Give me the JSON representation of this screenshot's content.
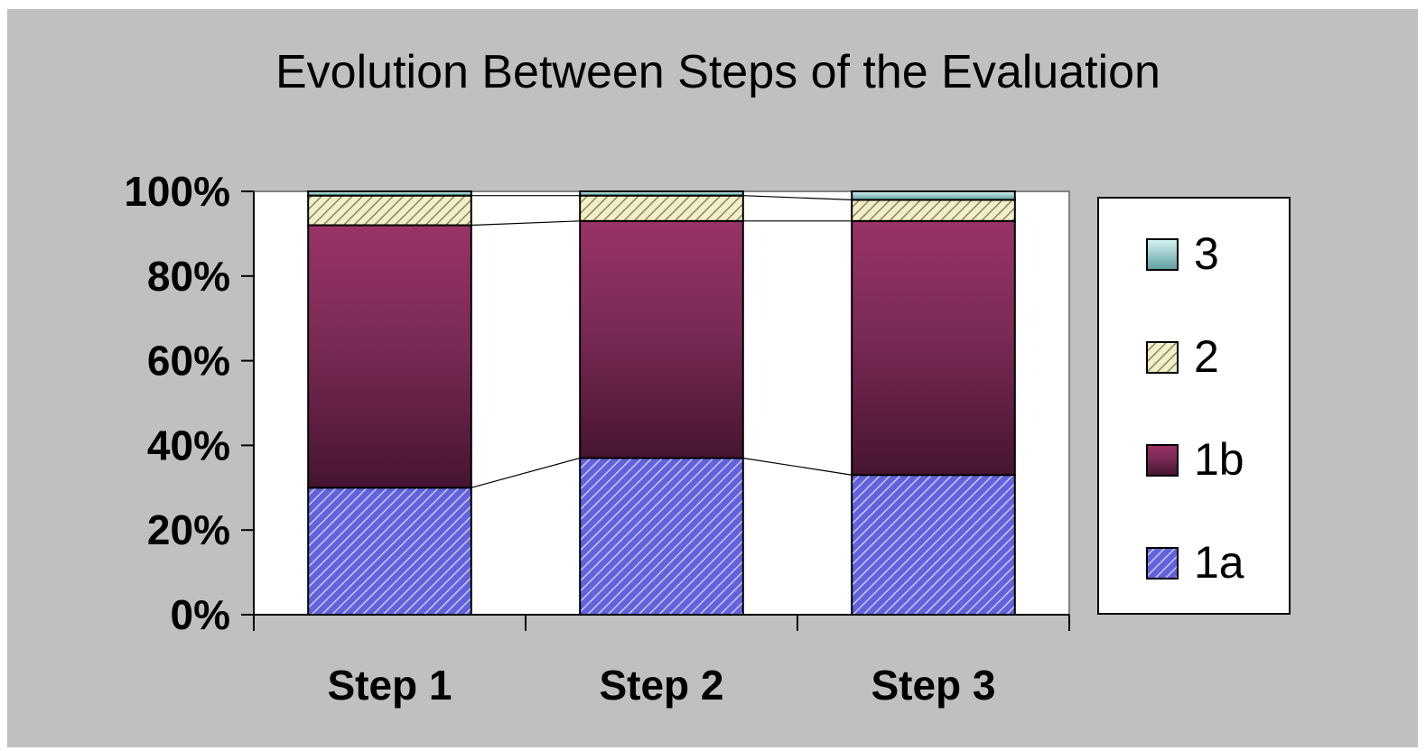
{
  "chart_data": {
    "type": "bar",
    "stacked": true,
    "percent": true,
    "title": "Evolution Between Steps of the Evaluation",
    "xlabel": "",
    "ylabel": "",
    "categories": [
      "Step 1",
      "Step 2",
      "Step 3"
    ],
    "series": [
      {
        "name": "1a",
        "values": [
          30,
          37,
          33
        ],
        "color": "#5b5bd6",
        "pattern": "diagonal-stripes"
      },
      {
        "name": "1b",
        "values": [
          62,
          56,
          60
        ],
        "color": "#933063",
        "gradient_end": "#4a1530"
      },
      {
        "name": "2",
        "values": [
          7,
          6,
          5
        ],
        "color": "#e8e4b0",
        "pattern": "diagonal-stripes"
      },
      {
        "name": "3",
        "values": [
          1,
          1,
          2
        ],
        "color": "#a8e0e0"
      }
    ],
    "ylim": [
      0,
      100
    ],
    "yticks": [
      "0%",
      "20%",
      "40%",
      "60%",
      "80%",
      "100%"
    ],
    "grid": false,
    "series_lines": true,
    "legend": {
      "position": "right",
      "order": [
        "3",
        "2",
        "1b",
        "1a"
      ]
    },
    "colors": {
      "background": "#c0c0c0",
      "plot_background": "#ffffff"
    }
  }
}
